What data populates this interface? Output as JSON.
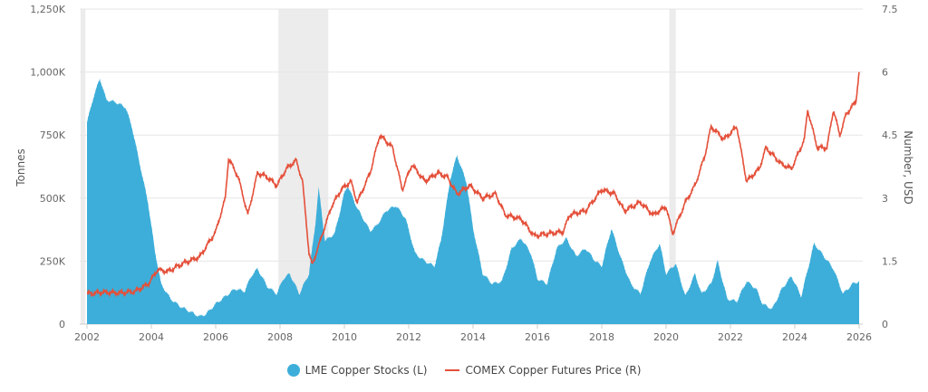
{
  "chart_data": {
    "type": "area+line",
    "xlabel": "",
    "ylabel_left": "Tonnes",
    "ylabel_right": "Number, USD",
    "xlim": [
      2002,
      2026
    ],
    "ylim_left": [
      0,
      1250000
    ],
    "ylim_right": [
      0,
      7.5
    ],
    "x_ticks": [
      "2002",
      "2004",
      "2006",
      "2008",
      "2010",
      "2012",
      "2014",
      "2016",
      "2018",
      "2020",
      "2022",
      "2024",
      "2026"
    ],
    "y_left_ticks": [
      "0",
      "250K",
      "500K",
      "750K",
      "1,000K",
      "1,250K"
    ],
    "y_right_ticks": [
      "0",
      "1.5",
      "3",
      "4.5",
      "6",
      "7.5"
    ],
    "grid": true,
    "legend_position": "bottom",
    "recession_bands": [
      [
        2001.8,
        2001.95
      ],
      [
        2007.95,
        2009.5
      ],
      [
        2020.1,
        2020.3
      ]
    ],
    "colors": {
      "stocks": "#3daed9",
      "price": "#e4503a",
      "band": "#ececec"
    },
    "series": [
      {
        "name": "LME Copper Stocks (L)",
        "axis": "left",
        "unit": "K tonnes",
        "points": [
          [
            2002.0,
            800
          ],
          [
            2002.2,
            900
          ],
          [
            2002.4,
            975
          ],
          [
            2002.6,
            890
          ],
          [
            2002.9,
            880
          ],
          [
            2003.2,
            860
          ],
          [
            2003.4,
            780
          ],
          [
            2003.7,
            600
          ],
          [
            2003.9,
            480
          ],
          [
            2004.1,
            300
          ],
          [
            2004.3,
            160
          ],
          [
            2004.6,
            100
          ],
          [
            2004.9,
            70
          ],
          [
            2005.2,
            50
          ],
          [
            2005.5,
            30
          ],
          [
            2005.7,
            40
          ],
          [
            2006.0,
            80
          ],
          [
            2006.3,
            110
          ],
          [
            2006.6,
            140
          ],
          [
            2006.9,
            130
          ],
          [
            2007.1,
            190
          ],
          [
            2007.3,
            220
          ],
          [
            2007.6,
            150
          ],
          [
            2007.9,
            120
          ],
          [
            2008.1,
            180
          ],
          [
            2008.3,
            200
          ],
          [
            2008.6,
            120
          ],
          [
            2008.9,
            200
          ],
          [
            2009.1,
            400
          ],
          [
            2009.2,
            540
          ],
          [
            2009.4,
            330
          ],
          [
            2009.7,
            360
          ],
          [
            2010.0,
            520
          ],
          [
            2010.1,
            550
          ],
          [
            2010.4,
            460
          ],
          [
            2010.8,
            370
          ],
          [
            2011.0,
            390
          ],
          [
            2011.3,
            450
          ],
          [
            2011.6,
            470
          ],
          [
            2011.9,
            420
          ],
          [
            2012.2,
            280
          ],
          [
            2012.5,
            250
          ],
          [
            2012.8,
            230
          ],
          [
            2013.0,
            330
          ],
          [
            2013.3,
            580
          ],
          [
            2013.5,
            670
          ],
          [
            2013.8,
            560
          ],
          [
            2014.0,
            380
          ],
          [
            2014.3,
            200
          ],
          [
            2014.6,
            160
          ],
          [
            2014.9,
            170
          ],
          [
            2015.2,
            300
          ],
          [
            2015.5,
            340
          ],
          [
            2015.8,
            280
          ],
          [
            2016.0,
            180
          ],
          [
            2016.3,
            160
          ],
          [
            2016.6,
            300
          ],
          [
            2016.9,
            340
          ],
          [
            2017.2,
            270
          ],
          [
            2017.5,
            300
          ],
          [
            2017.8,
            250
          ],
          [
            2018.0,
            230
          ],
          [
            2018.3,
            380
          ],
          [
            2018.6,
            260
          ],
          [
            2018.9,
            160
          ],
          [
            2019.2,
            120
          ],
          [
            2019.5,
            250
          ],
          [
            2019.8,
            320
          ],
          [
            2020.0,
            200
          ],
          [
            2020.3,
            240
          ],
          [
            2020.6,
            110
          ],
          [
            2020.9,
            200
          ],
          [
            2021.1,
            120
          ],
          [
            2021.4,
            160
          ],
          [
            2021.6,
            250
          ],
          [
            2021.9,
            100
          ],
          [
            2022.2,
            90
          ],
          [
            2022.5,
            170
          ],
          [
            2022.8,
            140
          ],
          [
            2023.0,
            80
          ],
          [
            2023.3,
            60
          ],
          [
            2023.6,
            140
          ],
          [
            2023.9,
            190
          ],
          [
            2024.2,
            110
          ],
          [
            2024.6,
            320
          ],
          [
            2024.9,
            270
          ],
          [
            2025.2,
            220
          ],
          [
            2025.5,
            120
          ],
          [
            2025.8,
            160
          ],
          [
            2026.0,
            170
          ]
        ]
      },
      {
        "name": "COMEX Copper Futures Price (R)",
        "axis": "right",
        "unit": "USD",
        "points": [
          [
            2002.0,
            0.72
          ],
          [
            2002.5,
            0.76
          ],
          [
            2003.0,
            0.74
          ],
          [
            2003.5,
            0.78
          ],
          [
            2003.9,
            0.95
          ],
          [
            2004.2,
            1.3
          ],
          [
            2004.5,
            1.25
          ],
          [
            2005.0,
            1.45
          ],
          [
            2005.5,
            1.6
          ],
          [
            2006.0,
            2.2
          ],
          [
            2006.3,
            3.0
          ],
          [
            2006.4,
            3.95
          ],
          [
            2006.7,
            3.5
          ],
          [
            2007.0,
            2.6
          ],
          [
            2007.3,
            3.6
          ],
          [
            2007.6,
            3.5
          ],
          [
            2007.9,
            3.3
          ],
          [
            2008.2,
            3.7
          ],
          [
            2008.5,
            3.9
          ],
          [
            2008.7,
            3.4
          ],
          [
            2008.9,
            1.7
          ],
          [
            2009.0,
            1.4
          ],
          [
            2009.3,
            2.1
          ],
          [
            2009.6,
            2.8
          ],
          [
            2009.9,
            3.2
          ],
          [
            2010.2,
            3.4
          ],
          [
            2010.4,
            2.9
          ],
          [
            2010.8,
            3.6
          ],
          [
            2011.1,
            4.5
          ],
          [
            2011.5,
            4.2
          ],
          [
            2011.8,
            3.2
          ],
          [
            2012.1,
            3.8
          ],
          [
            2012.5,
            3.4
          ],
          [
            2012.9,
            3.6
          ],
          [
            2013.2,
            3.5
          ],
          [
            2013.5,
            3.1
          ],
          [
            2013.9,
            3.3
          ],
          [
            2014.3,
            3.0
          ],
          [
            2014.7,
            3.1
          ],
          [
            2015.0,
            2.6
          ],
          [
            2015.5,
            2.5
          ],
          [
            2015.9,
            2.1
          ],
          [
            2016.3,
            2.15
          ],
          [
            2016.8,
            2.2
          ],
          [
            2017.0,
            2.6
          ],
          [
            2017.5,
            2.7
          ],
          [
            2018.0,
            3.2
          ],
          [
            2018.4,
            3.1
          ],
          [
            2018.7,
            2.7
          ],
          [
            2019.2,
            2.9
          ],
          [
            2019.6,
            2.6
          ],
          [
            2020.0,
            2.8
          ],
          [
            2020.2,
            2.15
          ],
          [
            2020.6,
            2.9
          ],
          [
            2020.9,
            3.3
          ],
          [
            2021.2,
            4.0
          ],
          [
            2021.4,
            4.7
          ],
          [
            2021.8,
            4.4
          ],
          [
            2022.2,
            4.7
          ],
          [
            2022.5,
            3.4
          ],
          [
            2022.9,
            3.7
          ],
          [
            2023.1,
            4.2
          ],
          [
            2023.6,
            3.8
          ],
          [
            2023.9,
            3.7
          ],
          [
            2024.3,
            4.4
          ],
          [
            2024.4,
            5.1
          ],
          [
            2024.7,
            4.2
          ],
          [
            2025.0,
            4.2
          ],
          [
            2025.2,
            5.1
          ],
          [
            2025.4,
            4.5
          ],
          [
            2025.6,
            5.0
          ],
          [
            2025.9,
            5.3
          ],
          [
            2026.0,
            6.0
          ]
        ]
      }
    ]
  }
}
